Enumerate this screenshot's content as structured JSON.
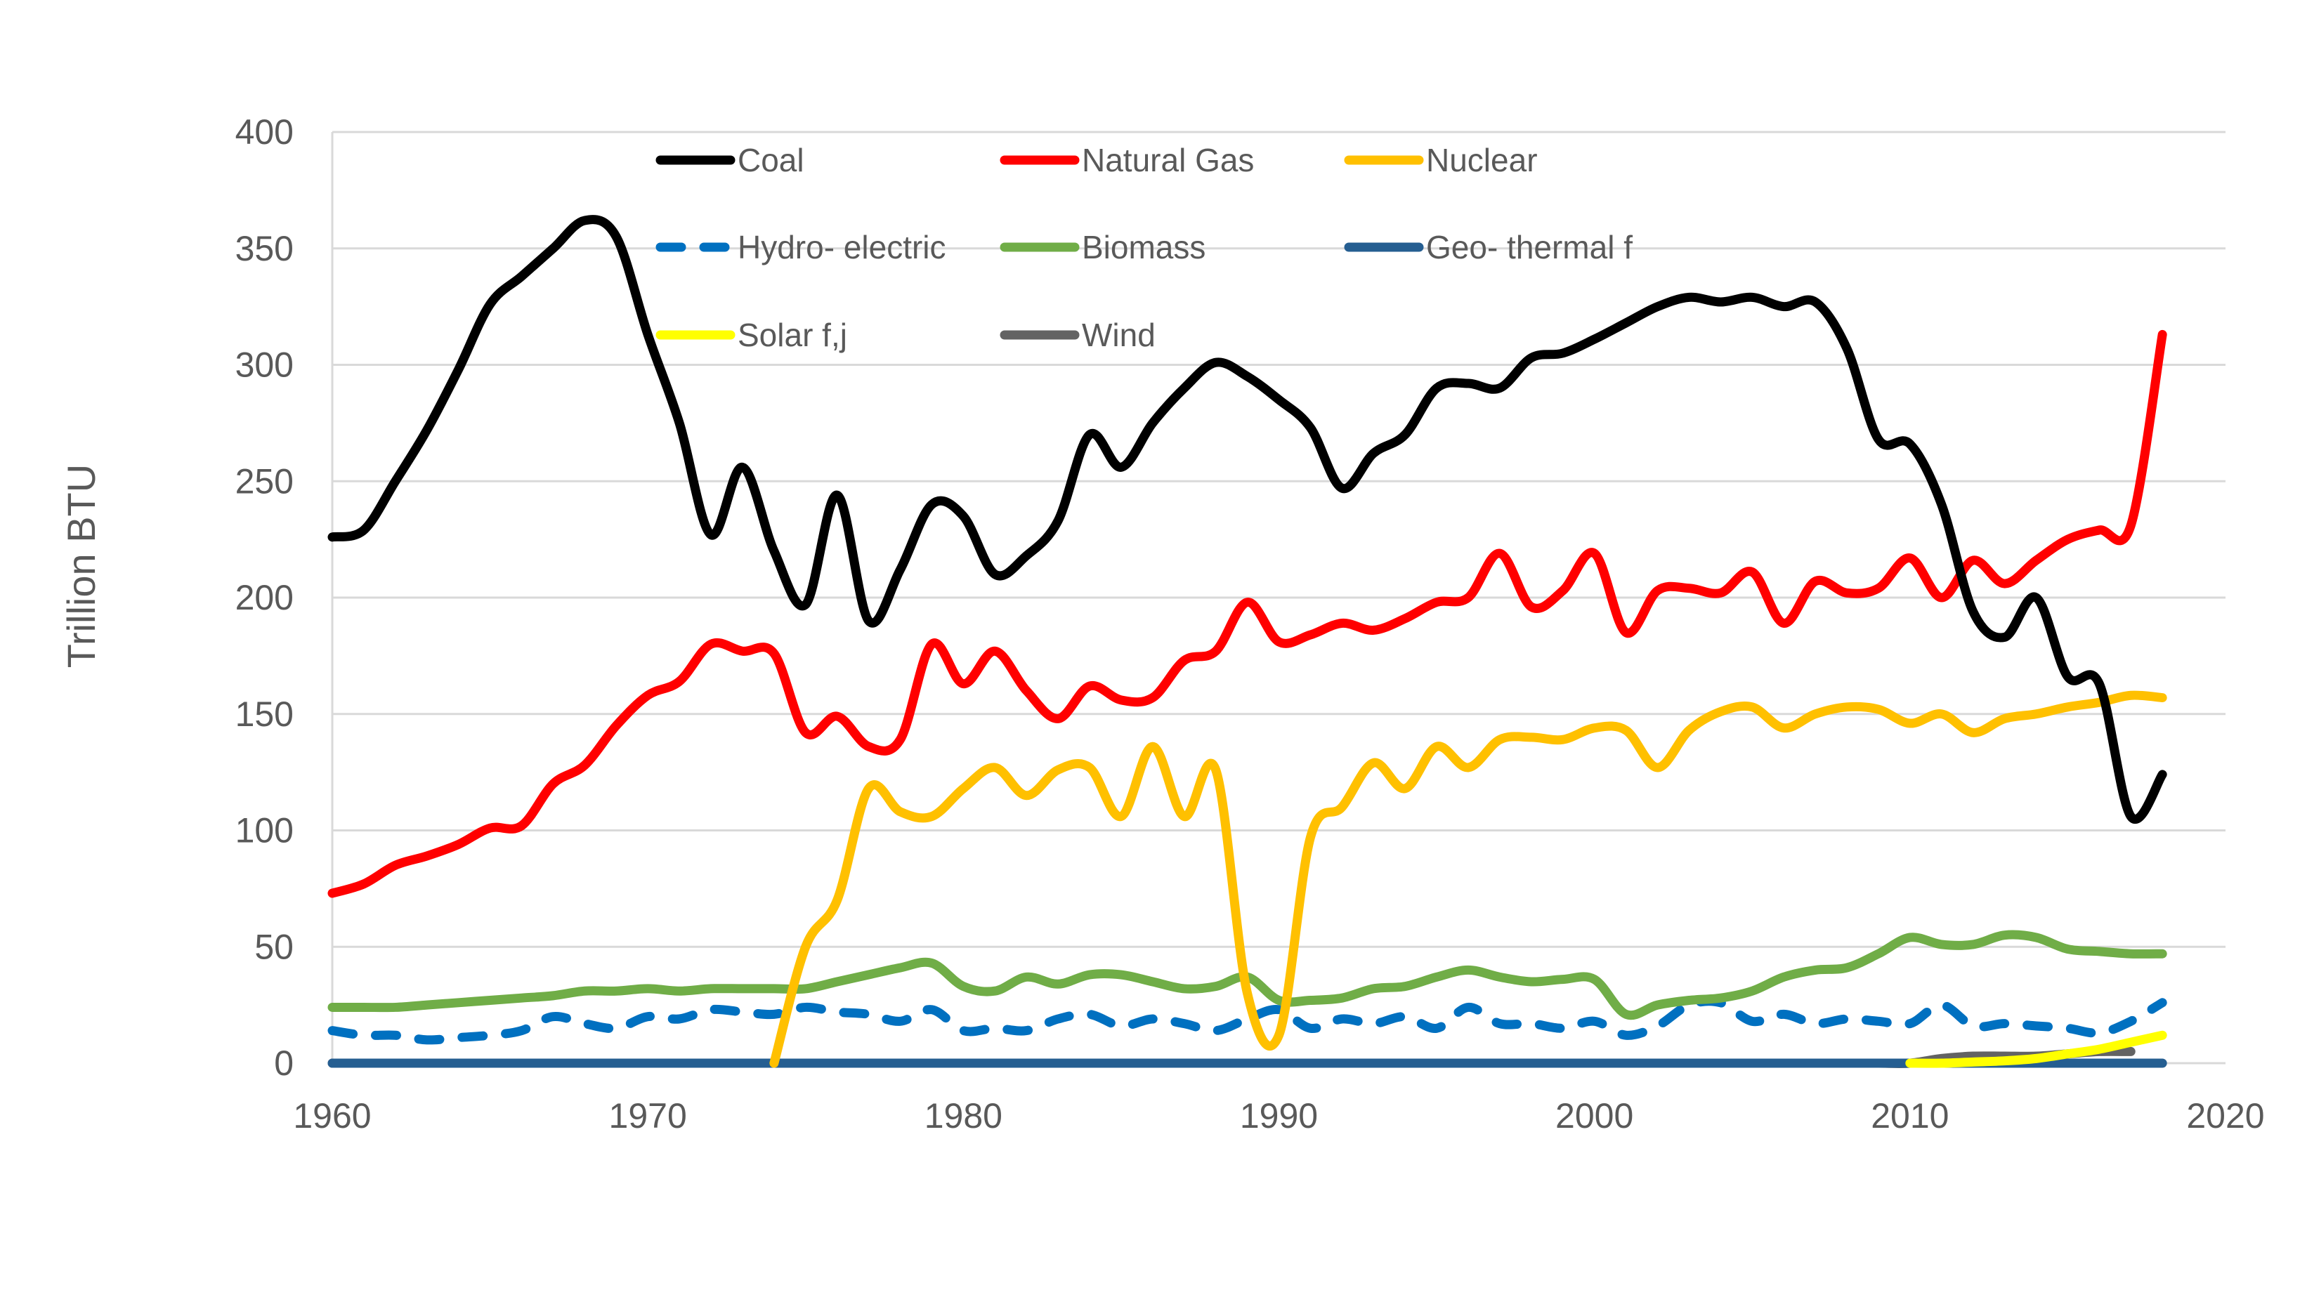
{
  "chart_data": {
    "type": "line",
    "title": "",
    "xlabel": "",
    "ylabel": "Trillion BTU",
    "xlim": [
      1960,
      2020
    ],
    "ylim": [
      0,
      400
    ],
    "xticks": [
      1960,
      1970,
      1980,
      1990,
      2000,
      2010,
      2020
    ],
    "yticks": [
      0,
      50,
      100,
      150,
      200,
      250,
      300,
      350,
      400
    ],
    "grid": "horizontal",
    "legend": "top",
    "x_start": 1960,
    "series": [
      {
        "name": "Coal",
        "color": "#000000",
        "dash": false,
        "values": [
          226,
          229,
          250,
          272,
          298,
          326,
          338,
          350,
          362,
          355,
          313,
          275,
          227,
          256,
          220,
          197,
          244,
          190,
          212,
          240,
          235,
          210,
          218,
          233,
          270,
          256,
          275,
          290,
          301,
          295,
          285,
          273,
          247,
          262,
          270,
          290,
          292,
          290,
          303,
          305,
          311,
          318,
          325,
          329,
          327,
          329,
          325,
          327,
          307,
          268,
          266,
          240,
          194,
          183,
          200,
          166,
          163,
          106,
          124
        ]
      },
      {
        "name": "Natural Gas",
        "color": "#FF0000",
        "dash": false,
        "values": [
          73,
          77,
          85,
          89,
          94,
          101,
          102,
          120,
          128,
          145,
          158,
          164,
          180,
          177,
          176,
          142,
          149,
          136,
          139,
          180,
          163,
          177,
          160,
          148,
          162,
          156,
          157,
          173,
          177,
          198,
          181,
          184,
          189,
          186,
          191,
          198,
          200,
          219,
          196,
          203,
          219,
          185,
          203,
          204,
          202,
          211,
          189,
          207,
          202,
          204,
          217,
          200,
          216,
          206,
          216,
          225,
          229,
          231,
          313
        ]
      },
      {
        "name": "Nuclear",
        "color": "#FFC000",
        "dash": false,
        "values": [
          null,
          null,
          null,
          null,
          null,
          null,
          null,
          null,
          null,
          null,
          null,
          null,
          null,
          null,
          0,
          50,
          70,
          118,
          108,
          106,
          118,
          127,
          115,
          126,
          127,
          106,
          136,
          106,
          126,
          30,
          12,
          97,
          110,
          129,
          118,
          136,
          127,
          139,
          140,
          139,
          144,
          143,
          127,
          143,
          151,
          153,
          144,
          150,
          153,
          152,
          146,
          150,
          142,
          148,
          150,
          153,
          155,
          158,
          157
        ]
      },
      {
        "name": "Hydro- electric",
        "color": "#0070C0",
        "dash": true,
        "values": [
          14,
          12,
          12,
          10,
          11,
          12,
          14,
          20,
          17,
          15,
          20,
          19,
          23,
          22,
          21,
          24,
          22,
          21,
          18,
          23,
          14,
          15,
          14,
          19,
          21,
          16,
          19,
          17,
          14,
          19,
          23,
          15,
          19,
          17,
          20,
          15,
          24,
          17,
          17,
          15,
          18,
          12,
          16,
          25,
          26,
          18,
          21,
          17,
          19,
          18,
          17,
          25,
          16,
          17,
          16,
          15,
          13,
          18,
          26
        ]
      },
      {
        "name": "Biomass",
        "color": "#70AD47",
        "dash": false,
        "values": [
          24,
          24,
          24,
          25,
          26,
          27,
          28,
          29,
          31,
          31,
          32,
          31,
          32,
          32,
          32,
          32,
          35,
          38,
          41,
          43,
          33,
          31,
          37,
          34,
          38,
          38,
          35,
          32,
          33,
          37,
          27,
          27,
          28,
          32,
          33,
          37,
          40,
          37,
          35,
          36,
          36,
          21,
          25,
          27,
          28,
          31,
          37,
          40,
          41,
          47,
          54,
          51,
          51,
          55,
          54,
          49,
          48,
          47,
          47
        ]
      },
      {
        "name": "Geo- thermal f",
        "color": "#255E91",
        "dash": false,
        "values": [
          0,
          0,
          0,
          0,
          0,
          0,
          0,
          0,
          0,
          0,
          0,
          0,
          0,
          0,
          0,
          0,
          0,
          0,
          0,
          0,
          0,
          0,
          0,
          0,
          0,
          0,
          0,
          0,
          0,
          0,
          0,
          0,
          0,
          0,
          0,
          0,
          0,
          0,
          0,
          0,
          0,
          0,
          0,
          0,
          0,
          0,
          0,
          0,
          0,
          0,
          0,
          0,
          0,
          0,
          0,
          0,
          0,
          0,
          0
        ]
      },
      {
        "name": "Solar f,j",
        "color": "#FFFF00",
        "dash": false,
        "values": [
          null,
          null,
          null,
          null,
          null,
          null,
          null,
          null,
          null,
          null,
          null,
          null,
          null,
          null,
          null,
          null,
          null,
          null,
          null,
          null,
          null,
          null,
          null,
          null,
          null,
          null,
          null,
          null,
          null,
          null,
          null,
          null,
          null,
          null,
          null,
          null,
          null,
          null,
          null,
          null,
          null,
          null,
          null,
          null,
          null,
          null,
          null,
          null,
          null,
          null,
          0,
          0,
          0.5,
          1,
          2,
          4,
          6,
          9,
          12
        ]
      },
      {
        "name": "Wind",
        "color": "#636363",
        "dash": false,
        "values": [
          0,
          0,
          0,
          0,
          0,
          0,
          0,
          0,
          0,
          0,
          0,
          0,
          0,
          0,
          0,
          0,
          0,
          0,
          0,
          0,
          0,
          0,
          0,
          0,
          0,
          0,
          0,
          0,
          0,
          0,
          0,
          0,
          0,
          0,
          0,
          0,
          0,
          0,
          0,
          0,
          0,
          0,
          0,
          0,
          0,
          0,
          0,
          0,
          0,
          0,
          0,
          2,
          3,
          3,
          3,
          4,
          5,
          5,
          null
        ]
      }
    ]
  }
}
